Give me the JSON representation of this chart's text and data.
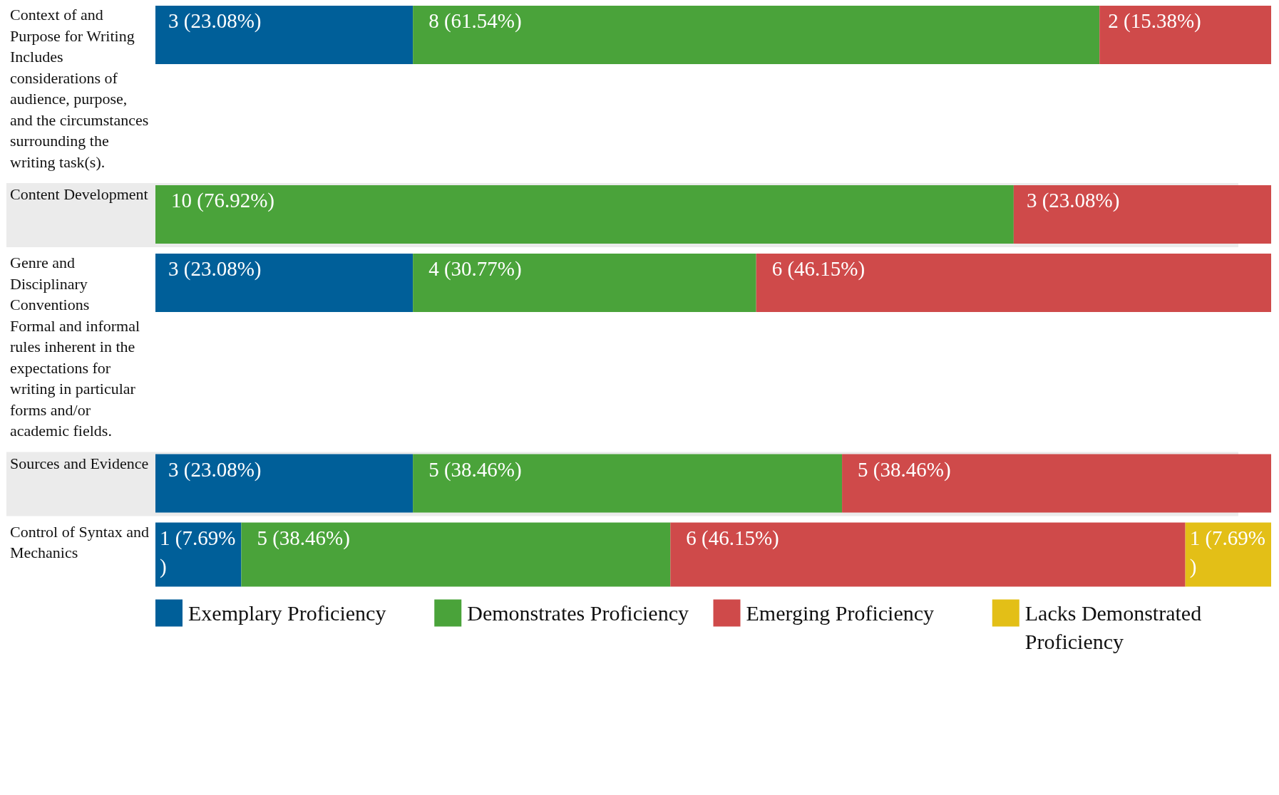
{
  "chart_data": {
    "type": "bar",
    "orientation": "horizontal",
    "stacked": true,
    "legend": "bottom",
    "categories": [
      "Context of and Purpose for Writing\nIncludes considerations of audience, purpose, and the circumstances surrounding the writing task(s).",
      "Content Development",
      "Genre and Disciplinary Conventions\nFormal and informal rules inherent in the expectations for writing in particular forms and/or academic fields.",
      "Sources and Evidence",
      "Control of Syntax and Mechanics"
    ],
    "series": [
      {
        "name": "Exemplary Proficiency",
        "color": "#005f99",
        "values": [
          3,
          null,
          3,
          3,
          1
        ],
        "value_labels": [
          "3 (23.08%)",
          null,
          "3 (23.08%)",
          "3 (23.08%)",
          "1 (7.69%)"
        ]
      },
      {
        "name": "Demonstrates Proficiency",
        "color": "#4aa33a",
        "values": [
          8,
          10,
          4,
          5,
          5
        ],
        "value_labels": [
          "8 (61.54%)",
          "10 (76.92%)",
          "4 (30.77%)",
          "5 (38.46%)",
          "5 (38.46%)"
        ]
      },
      {
        "name": "Emerging Proficiency",
        "color": "#cf4a4a",
        "values": [
          2,
          3,
          6,
          5,
          6
        ],
        "value_labels": [
          "2 (15.38%)",
          "3 (23.08%)",
          "6 (46.15%)",
          "5 (38.46%)",
          "6 (46.15%)"
        ]
      },
      {
        "name": "Lacks Demonstrated Proficiency",
        "color": "#e3bf17",
        "values": [
          null,
          null,
          null,
          null,
          1
        ],
        "value_labels": [
          null,
          null,
          null,
          null,
          "1 (7.69%)"
        ]
      }
    ]
  }
}
